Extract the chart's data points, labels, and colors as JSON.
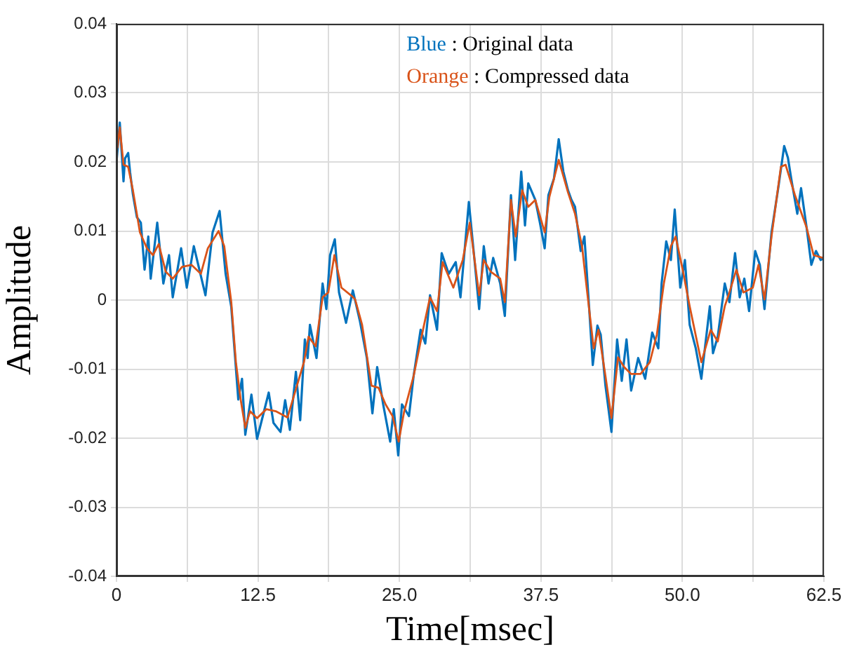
{
  "chart_data": {
    "type": "line",
    "xlabel": "Time[msec]",
    "ylabel": "Amplitude",
    "annotations": [
      "Blue : Original data",
      "Orange : Compressed data"
    ],
    "xlim": [
      0,
      62.5
    ],
    "ylim": [
      -0.04,
      0.04
    ],
    "xticks": [
      0,
      {
        "value": 6.25,
        "label": null
      },
      12.5,
      {
        "value": 18.75,
        "label": null
      },
      {
        "value": 25,
        "label": "25.0"
      },
      {
        "value": 31.25,
        "label": null
      },
      37.5,
      {
        "value": 43.75,
        "label": null
      },
      {
        "value": 50,
        "label": "50.0"
      },
      {
        "value": 56.25,
        "label": null
      },
      62.5
    ],
    "yticks": [
      -0.04,
      -0.03,
      -0.02,
      -0.01,
      0,
      0.01,
      0.02,
      0.03,
      0.04
    ],
    "grid": true,
    "marker": "none",
    "line_style": "solid",
    "series": [
      {
        "color": "#0072bd",
        "x": [
          0,
          0.29,
          0.62,
          0.75,
          1.03,
          1.2,
          1.45,
          1.8,
          2.15,
          2.48,
          2.81,
          3.02,
          3.6,
          4.14,
          4.64,
          4.97,
          5.71,
          6.21,
          6.83,
          7.86,
          8.49,
          9.11,
          9.64,
          10.14,
          10.76,
          11.09,
          11.38,
          11.92,
          12.42,
          13.45,
          13.87,
          14.49,
          14.9,
          15.32,
          15.85,
          16.23,
          16.64,
          16.89,
          17.09,
          17.67,
          18.21,
          18.54,
          18.87,
          19.29,
          19.66,
          20.28,
          20.88,
          21.5,
          22.12,
          22.61,
          23.03,
          23.56,
          24.18,
          24.5,
          24.89,
          25.22,
          25.84,
          26.25,
          26.87,
          27.28,
          27.7,
          28.32,
          28.73,
          29.35,
          29.97,
          30.39,
          30.72,
          31.13,
          31.63,
          32.04,
          32.45,
          32.87,
          33.28,
          33.9,
          34.31,
          34.85,
          35.22,
          35.76,
          36.09,
          36.38,
          37.0,
          37.41,
          37.83,
          38.16,
          38.65,
          39.07,
          39.48,
          39.89,
          40.2,
          40.51,
          41.01,
          41.34,
          41.75,
          42.08,
          42.49,
          42.78,
          43.2,
          43.73,
          44.23,
          44.64,
          45.06,
          45.47,
          46.09,
          46.71,
          47.33,
          47.87,
          48.16,
          48.57,
          48.98,
          49.32,
          49.81,
          50.22,
          50.64,
          51.18,
          51.67,
          52.42,
          52.7,
          53.12,
          53.74,
          54.15,
          54.65,
          55.06,
          55.47,
          55.89,
          56.43,
          56.84,
          57.25,
          57.87,
          58.49,
          58.99,
          59.32,
          59.65,
          60.15,
          60.48,
          60.97,
          61.39,
          61.8,
          62.21,
          62.5
        ],
        "values": [
          0.02,
          0.0257,
          0.0172,
          0.0205,
          0.0213,
          0.0185,
          0.0153,
          0.012,
          0.0112,
          0.0044,
          0.0092,
          0.0031,
          0.0112,
          0.0024,
          0.0065,
          0.0004,
          0.0075,
          0.0018,
          0.0078,
          0.0007,
          0.0098,
          0.0129,
          0.0038,
          -0.001,
          -0.0144,
          -0.0114,
          -0.0195,
          -0.0137,
          -0.0201,
          -0.0134,
          -0.0178,
          -0.0191,
          -0.0145,
          -0.0188,
          -0.0104,
          -0.0174,
          -0.0057,
          -0.0084,
          -0.0036,
          -0.0084,
          0.0024,
          -0.0013,
          0.0065,
          0.0088,
          0.0011,
          -0.0033,
          0.0014,
          -0.003,
          -0.0084,
          -0.0164,
          -0.0097,
          -0.0151,
          -0.0205,
          -0.0158,
          -0.0225,
          -0.0151,
          -0.0168,
          -0.011,
          -0.0043,
          -0.0063,
          0.0007,
          -0.0043,
          0.0068,
          0.0038,
          0.0055,
          0.0004,
          0.0065,
          0.0142,
          0.0058,
          -0.0013,
          0.0078,
          0.0024,
          0.0061,
          0.0024,
          -0.0023,
          0.0152,
          0.0058,
          0.0186,
          0.0108,
          0.0169,
          0.0145,
          0.0112,
          0.0075,
          0.0152,
          0.0176,
          0.0233,
          0.0186,
          0.0159,
          0.0145,
          0.0135,
          0.0071,
          0.0092,
          -0.0009,
          -0.0094,
          -0.0037,
          -0.005,
          -0.0124,
          -0.0191,
          -0.0057,
          -0.0117,
          -0.0057,
          -0.0131,
          -0.0084,
          -0.0114,
          -0.0047,
          -0.007,
          0.0024,
          0.0085,
          0.0058,
          0.0131,
          0.0018,
          0.0058,
          -0.0036,
          -0.007,
          -0.0114,
          -0.0009,
          -0.0077,
          -0.0053,
          0.0024,
          -0.0003,
          0.0068,
          0.0004,
          0.0031,
          -0.0016,
          0.0071,
          0.0051,
          -0.0013,
          0.0098,
          0.0165,
          0.0223,
          0.0206,
          0.0172,
          0.0125,
          0.0162,
          0.0105,
          0.0051,
          0.0071,
          0.0058,
          0.0061
        ]
      },
      {
        "color": "#d95319",
        "x": [
          0.08,
          0.29,
          0.62,
          1.03,
          1.45,
          2.07,
          2.69,
          3.23,
          3.73,
          4.35,
          4.97,
          5.79,
          6.62,
          7.45,
          8.07,
          9.02,
          9.52,
          10.14,
          10.55,
          10.97,
          11.38,
          11.8,
          12.42,
          13.24,
          14.07,
          15.11,
          15.94,
          16.56,
          16.97,
          17.59,
          18.21,
          18.71,
          19.25,
          19.87,
          20.7,
          21.08,
          21.7,
          22.53,
          23.15,
          23.77,
          24.39,
          24.93,
          25.42,
          26.25,
          27.08,
          27.7,
          28.32,
          28.81,
          29.76,
          30.59,
          31.21,
          32.04,
          32.45,
          33.07,
          33.9,
          34.31,
          34.85,
          35.27,
          35.84,
          36.38,
          37.0,
          37.83,
          38.24,
          39.07,
          39.89,
          40.51,
          41.13,
          41.54,
          42.16,
          42.58,
          43.2,
          43.73,
          44.31,
          44.85,
          45.47,
          46.3,
          47.12,
          47.74,
          48.36,
          48.98,
          49.4,
          50.02,
          50.64,
          51.67,
          52.5,
          53.12,
          53.74,
          54.15,
          54.77,
          55.39,
          56.22,
          56.72,
          57.25,
          57.87,
          58.7,
          59.11,
          59.94,
          60.97,
          61.59,
          62.42
        ],
        "values": [
          0.022,
          0.025,
          0.0196,
          0.0193,
          0.0159,
          0.0098,
          0.0075,
          0.0065,
          0.0081,
          0.0041,
          0.0031,
          0.0048,
          0.0051,
          0.0038,
          0.0075,
          0.01,
          0.0078,
          -0.0003,
          -0.009,
          -0.0144,
          -0.0185,
          -0.0161,
          -0.0171,
          -0.0158,
          -0.0161,
          -0.017,
          -0.0124,
          -0.009,
          -0.0053,
          -0.0067,
          0.0004,
          0.0011,
          0.0065,
          0.0018,
          0.0007,
          0.0001,
          -0.0036,
          -0.0124,
          -0.0127,
          -0.0151,
          -0.0168,
          -0.0205,
          -0.0161,
          -0.011,
          -0.0043,
          0.0004,
          -0.0016,
          0.0055,
          0.0018,
          0.0058,
          0.0112,
          0.0007,
          0.0058,
          0.0041,
          0.0031,
          -0.0003,
          0.0145,
          0.0092,
          0.0159,
          0.0135,
          0.0145,
          0.0098,
          0.0149,
          0.0203,
          0.0156,
          0.0125,
          0.0078,
          0.0018,
          -0.007,
          -0.0043,
          -0.011,
          -0.0171,
          -0.0083,
          -0.0097,
          -0.0107,
          -0.0107,
          -0.009,
          -0.005,
          0.0024,
          0.0078,
          0.0092,
          0.0044,
          -0.0009,
          -0.009,
          -0.0043,
          -0.006,
          -0.0009,
          0.0011,
          0.0044,
          0.0011,
          0.0018,
          0.0051,
          0.0001,
          0.0092,
          0.0193,
          0.0196,
          0.0152,
          0.0105,
          0.0065,
          0.0061
        ]
      }
    ]
  }
}
